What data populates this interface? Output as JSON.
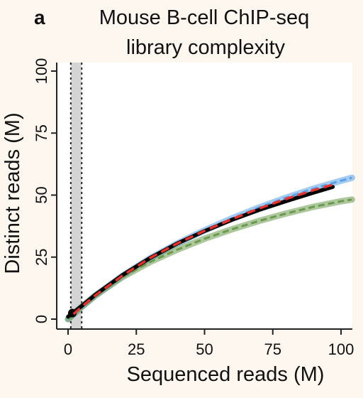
{
  "chart_data": {
    "type": "line",
    "panel_label": "a",
    "title_lines": [
      "Mouse B-cell ChIP-seq",
      "library complexity"
    ],
    "xlabel": "Sequenced reads (M)",
    "ylabel": "Distinct reads (M)",
    "xlim": [
      0,
      104
    ],
    "ylim": [
      0,
      102
    ],
    "x_ticks": [
      0,
      25,
      50,
      75,
      100
    ],
    "y_ticks": [
      0,
      25,
      50,
      75,
      100
    ],
    "shaded_region": {
      "x": [
        1,
        5
      ]
    },
    "series": [
      {
        "color": "#5aa0e6",
        "style": "band-dashed",
        "x": [
          0,
          5,
          10,
          20,
          30,
          40,
          50,
          60,
          70,
          80,
          90,
          100,
          104
        ],
        "y": [
          0,
          5,
          9.5,
          17.5,
          24.5,
          30.5,
          35.8,
          40.6,
          45,
          49,
          52.6,
          55.8,
          57
        ]
      },
      {
        "color": "#6b9a4e",
        "style": "band-dashed",
        "x": [
          0,
          5,
          10,
          20,
          30,
          40,
          50,
          60,
          70,
          80,
          90,
          100,
          104
        ],
        "y": [
          0,
          5,
          9.5,
          17,
          23,
          28,
          32.4,
          36.2,
          39.6,
          42.6,
          45.3,
          47.5,
          48.2
        ]
      },
      {
        "color": "#000000",
        "style": "solid",
        "x": [
          0,
          5,
          10,
          20,
          30,
          40,
          50,
          60,
          70,
          80,
          90,
          97
        ],
        "y": [
          1,
          5.3,
          9.8,
          17.8,
          24.6,
          30.5,
          35.5,
          40,
          44,
          47.6,
          51,
          53.3
        ]
      },
      {
        "color": "#e8312a",
        "style": "dashed",
        "x": [
          2,
          5,
          10,
          20,
          30,
          40,
          50,
          60,
          70,
          80,
          90,
          97
        ],
        "y": [
          2,
          5,
          9.6,
          17.6,
          24.6,
          30.5,
          35.6,
          40.3,
          44.6,
          48.5,
          52,
          54.2
        ]
      }
    ]
  }
}
